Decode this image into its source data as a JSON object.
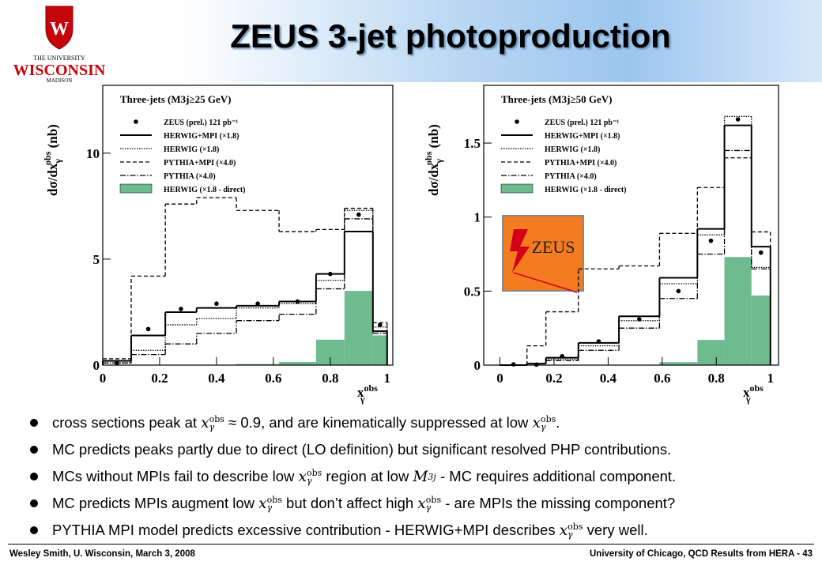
{
  "header": {
    "title": "ZEUS 3-jet photoproduction"
  },
  "logo": {
    "line1": "THE UNIVERSITY",
    "line2": "WISCONSIN",
    "line3": "MADISON",
    "crest": "W"
  },
  "zeus_logo": "ZEUS",
  "chart_data": [
    {
      "type": "histogram",
      "legend_title": "Three-jets (M3j≥25 GeV)",
      "ylabel": {
        "base": "dσ/dx",
        "sub": "γ",
        "sup": "obs",
        "tail": " (nb)"
      },
      "xlabel": {
        "base": "x",
        "sub": "γ",
        "sup": "obs"
      },
      "bins": [
        0,
        0.1,
        0.22,
        0.33,
        0.47,
        0.62,
        0.75,
        0.85,
        0.95,
        1.0
      ],
      "xlim": [
        0,
        1.02
      ],
      "ylim": [
        0,
        13.2
      ],
      "xticks": [
        0,
        0.2,
        0.4,
        0.6,
        0.8,
        1
      ],
      "yticks": [
        0,
        5,
        10
      ],
      "series": [
        {
          "name": "ZEUS (prel.) 121 pb⁻¹",
          "color": "#000000",
          "style": "points",
          "values": [
            0.1,
            1.7,
            2.65,
            2.9,
            2.9,
            3.0,
            4.3,
            7.1,
            1.9
          ]
        },
        {
          "name": "HERWIG+MPI (×1.8)",
          "color": "#000000",
          "style": "solid",
          "values": [
            0.2,
            1.4,
            2.5,
            2.7,
            2.8,
            3.0,
            4.3,
            6.3,
            1.6
          ]
        },
        {
          "name": "HERWIG (×1.8)",
          "color": "#000000",
          "style": "dotted",
          "values": [
            0.1,
            0.7,
            1.9,
            2.2,
            2.7,
            2.9,
            4.0,
            7.3,
            1.8
          ]
        },
        {
          "name": "PYTHIA+MPI (×4.0)",
          "color": "#000000",
          "style": "dashed",
          "values": [
            0.3,
            4.2,
            7.6,
            7.9,
            7.3,
            6.3,
            6.4,
            7.4,
            2.0
          ]
        },
        {
          "name": "PYTHIA (×4.0)",
          "color": "#000000",
          "style": "dashdot",
          "values": [
            0.1,
            0.5,
            1.0,
            1.5,
            2.1,
            2.4,
            3.6,
            6.9,
            1.5
          ]
        },
        {
          "name": "HERWIG (×1.8 - direct)",
          "color": "#6dbb8f",
          "style": "fill",
          "values": [
            0,
            0,
            0,
            0,
            0.05,
            0.15,
            1.2,
            3.5,
            1.4
          ]
        }
      ]
    },
    {
      "type": "histogram",
      "legend_title": "Three-jets (M3j≥50 GeV)",
      "ylabel": {
        "base": "dσ/dx",
        "sub": "γ",
        "sup": "obs",
        "tail": " (nb)"
      },
      "xlabel": {
        "base": "x",
        "sub": "γ",
        "sup": "obs"
      },
      "bins": [
        0,
        0.1,
        0.17,
        0.29,
        0.44,
        0.59,
        0.73,
        0.83,
        0.93,
        1.0
      ],
      "xlim": [
        -0.06,
        1.03
      ],
      "ylim": [
        0,
        1.89
      ],
      "xticks": [
        0,
        0.2,
        0.4,
        0.6,
        0.8,
        1
      ],
      "yticks": [
        0,
        0.5,
        1,
        1.5
      ],
      "series": [
        {
          "name": "ZEUS (prel.) 121 pb⁻¹",
          "color": "#000000",
          "style": "points",
          "values": [
            0.005,
            0.003,
            0.06,
            0.16,
            0.31,
            0.5,
            0.84,
            1.66,
            0.76
          ]
        },
        {
          "name": "HERWIG+MPI (×1.8)",
          "color": "#000000",
          "style": "solid",
          "values": [
            0,
            0.01,
            0.05,
            0.15,
            0.33,
            0.59,
            0.92,
            1.62,
            0.8
          ]
        },
        {
          "name": "HERWIG (×1.8)",
          "color": "#000000",
          "style": "dotted",
          "values": [
            0,
            0.01,
            0.04,
            0.13,
            0.3,
            0.55,
            0.88,
            1.68,
            0.66
          ]
        },
        {
          "name": "PYTHIA+MPI (×4.0)",
          "color": "#000000",
          "style": "dashed",
          "values": [
            0,
            0.13,
            0.36,
            0.65,
            0.67,
            0.89,
            1.2,
            1.4,
            0.9
          ]
        },
        {
          "name": "PYTHIA (×4.0)",
          "color": "#000000",
          "style": "dashdot",
          "values": [
            0,
            0.01,
            0.03,
            0.1,
            0.25,
            0.45,
            0.75,
            1.45,
            0.65
          ]
        },
        {
          "name": "HERWIG (×1.8 - direct)",
          "color": "#6dbb8f",
          "style": "fill",
          "values": [
            0,
            0,
            0,
            0,
            0,
            0.02,
            0.17,
            0.73,
            0.47
          ]
        }
      ]
    }
  ],
  "bullets": [
    [
      "cross sections peak at ",
      {
        "base": "x",
        "sub": "γ",
        "sup": "obs"
      },
      " ≈ 0.9, and are kinematically suppressed at low ",
      {
        "base": "x",
        "sub": "γ",
        "sup": "obs"
      },
      "."
    ],
    [
      "MC predicts peaks partly due to direct (LO definition) but significant resolved PHP contributions."
    ],
    [
      "MCs without MPIs fail to describe low ",
      {
        "base": "x",
        "sub": "γ",
        "sup": "obs"
      },
      " region at low ",
      {
        "base": "M",
        "sub": "3j"
      },
      " - MC requires additional component."
    ],
    [
      "MC predicts MPIs augment low ",
      {
        "base": "x",
        "sub": "γ",
        "sup": "obs"
      },
      " but don’t affect high ",
      {
        "base": "x",
        "sub": "γ",
        "sup": "obs"
      },
      " - are MPIs the missing component?"
    ],
    [
      "PYTHIA MPI model predicts excessive contribution - HERWIG+MPI describes ",
      {
        "base": "x",
        "sub": "γ",
        "sup": "obs"
      },
      " very well."
    ]
  ],
  "footer": {
    "left": "Wesley Smith, U. Wisconsin, March 3, 2008",
    "right": "University of Chicago, QCD Results from HERA -  43"
  }
}
